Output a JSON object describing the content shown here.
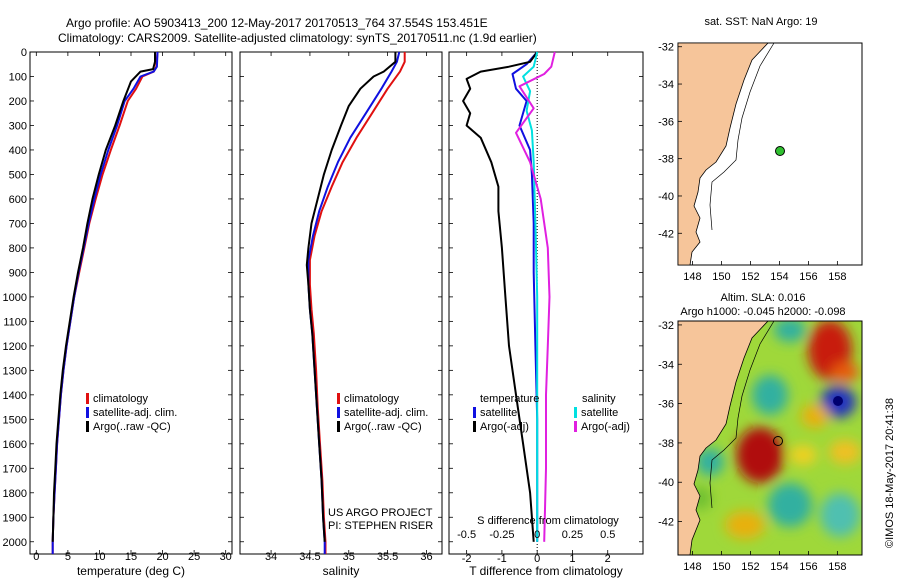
{
  "header": {
    "line1": "Argo profile: AO 5903413_200 12-May-2017 20170513_764 37.554S 153.451E",
    "line2": "Climatology: CARS2009. Satellite-adjusted climatology: synTS_20170511.nc (1.9d earlier)"
  },
  "colors": {
    "climatology": "#e01010",
    "satellite": "#1010e0",
    "argo": "#000000",
    "satellite_s": "#00e0e0",
    "argo_s": "#e020e0"
  },
  "chart_data": [
    {
      "id": "temperature",
      "type": "line",
      "xlabel": "temperature (deg C)",
      "ylabel": "",
      "xlim": [
        -1,
        31
      ],
      "ylim": [
        2050,
        0
      ],
      "xticks": [
        "0",
        "5",
        "10",
        "15",
        "20",
        "25",
        "30"
      ],
      "yticks": [
        "0",
        "100",
        "200",
        "300",
        "400",
        "500",
        "600",
        "700",
        "800",
        "900",
        "1000",
        "1100",
        "1200",
        "1300",
        "1400",
        "1500",
        "1600",
        "1700",
        "1800",
        "1900",
        "2000"
      ],
      "legend": [
        "climatology",
        "satellite-adj. clim.",
        "Argo(..raw -QC)"
      ],
      "series": [
        {
          "name": "climatology",
          "color": "#e01010",
          "points": [
            [
              19.2,
              0
            ],
            [
              19.0,
              60
            ],
            [
              18.6,
              80
            ],
            [
              16.8,
              100
            ],
            [
              15.8,
              150
            ],
            [
              14.5,
              200
            ],
            [
              13.2,
              300
            ],
            [
              11.8,
              400
            ],
            [
              10.5,
              500
            ],
            [
              9.4,
              600
            ],
            [
              8.4,
              700
            ],
            [
              7.6,
              800
            ],
            [
              6.8,
              900
            ],
            [
              6.0,
              1000
            ],
            [
              5.4,
              1100
            ],
            [
              4.8,
              1200
            ],
            [
              4.3,
              1300
            ],
            [
              3.9,
              1400
            ],
            [
              3.6,
              1500
            ],
            [
              3.3,
              1600
            ],
            [
              3.1,
              1700
            ],
            [
              2.9,
              1800
            ],
            [
              2.7,
              1900
            ],
            [
              2.6,
              2000
            ],
            [
              2.6,
              2050
            ]
          ]
        },
        {
          "name": "satellite-adj. clim.",
          "color": "#1010e0",
          "points": [
            [
              19.2,
              0
            ],
            [
              19.1,
              60
            ],
            [
              18.6,
              80
            ],
            [
              16.5,
              100
            ],
            [
              15.4,
              150
            ],
            [
              14.0,
              200
            ],
            [
              12.8,
              300
            ],
            [
              11.4,
              400
            ],
            [
              10.2,
              500
            ],
            [
              9.2,
              600
            ],
            [
              8.3,
              700
            ],
            [
              7.5,
              800
            ],
            [
              6.7,
              900
            ],
            [
              6.0,
              1000
            ],
            [
              5.4,
              1100
            ],
            [
              4.8,
              1200
            ],
            [
              4.3,
              1300
            ],
            [
              3.9,
              1400
            ],
            [
              3.6,
              1500
            ],
            [
              3.3,
              1600
            ],
            [
              3.1,
              1700
            ],
            [
              2.9,
              1800
            ],
            [
              2.7,
              1900
            ],
            [
              2.6,
              2000
            ],
            [
              2.6,
              2050
            ]
          ]
        },
        {
          "name": "Argo(..raw -QC)",
          "color": "#000000",
          "points": [
            [
              18.8,
              0
            ],
            [
              18.8,
              40
            ],
            [
              18.5,
              70
            ],
            [
              16.5,
              80
            ],
            [
              15.0,
              120
            ],
            [
              13.8,
              200
            ],
            [
              12.5,
              300
            ],
            [
              11.0,
              400
            ],
            [
              9.9,
              500
            ],
            [
              8.9,
              600
            ],
            [
              8.1,
              700
            ],
            [
              7.4,
              800
            ],
            [
              6.6,
              900
            ],
            [
              5.9,
              1000
            ],
            [
              5.3,
              1100
            ],
            [
              4.7,
              1200
            ],
            [
              4.2,
              1300
            ],
            [
              3.8,
              1400
            ],
            [
              3.5,
              1500
            ],
            [
              3.2,
              1600
            ],
            [
              3.0,
              1700
            ],
            [
              2.8,
              1800
            ],
            [
              2.7,
              1900
            ],
            [
              2.6,
              2000
            ]
          ]
        }
      ]
    },
    {
      "id": "salinity",
      "type": "line",
      "xlabel": "salinity",
      "ylabel": "",
      "xlim": [
        33.6,
        36.2
      ],
      "ylim": [
        2050,
        0
      ],
      "xticks": [
        "34",
        "34.5",
        "35",
        "35.5",
        "36"
      ],
      "legend": [
        "climatology",
        "satellite-adj. clim.",
        "Argo(..raw -QC)"
      ],
      "annotation": [
        "US ARGO PROJECT",
        "PI: STEPHEN RISER"
      ],
      "series": [
        {
          "name": "climatology",
          "color": "#e01010",
          "points": [
            [
              35.72,
              0
            ],
            [
              35.72,
              40
            ],
            [
              35.66,
              80
            ],
            [
              35.5,
              150
            ],
            [
              35.3,
              250
            ],
            [
              35.1,
              350
            ],
            [
              34.92,
              450
            ],
            [
              34.78,
              550
            ],
            [
              34.65,
              650
            ],
            [
              34.56,
              750
            ],
            [
              34.5,
              850
            ],
            [
              34.5,
              950
            ],
            [
              34.52,
              1050
            ],
            [
              34.55,
              1150
            ],
            [
              34.58,
              1300
            ],
            [
              34.6,
              1450
            ],
            [
              34.63,
              1600
            ],
            [
              34.66,
              1750
            ],
            [
              34.68,
              1900
            ],
            [
              34.7,
              2000
            ],
            [
              34.7,
              2050
            ]
          ]
        },
        {
          "name": "satellite-adj. clim.",
          "color": "#1010e0",
          "points": [
            [
              35.65,
              0
            ],
            [
              35.62,
              40
            ],
            [
              35.55,
              80
            ],
            [
              35.42,
              150
            ],
            [
              35.22,
              250
            ],
            [
              35.02,
              350
            ],
            [
              34.86,
              450
            ],
            [
              34.73,
              550
            ],
            [
              34.62,
              650
            ],
            [
              34.54,
              750
            ],
            [
              34.48,
              850
            ],
            [
              34.48,
              950
            ],
            [
              34.5,
              1050
            ],
            [
              34.53,
              1150
            ],
            [
              34.56,
              1300
            ],
            [
              34.59,
              1450
            ],
            [
              34.62,
              1600
            ],
            [
              34.65,
              1750
            ],
            [
              34.67,
              1900
            ],
            [
              34.69,
              2000
            ],
            [
              34.69,
              2050
            ]
          ]
        },
        {
          "name": "Argo(..raw -QC)",
          "color": "#000000",
          "points": [
            [
              35.6,
              0
            ],
            [
              35.6,
              40
            ],
            [
              35.45,
              80
            ],
            [
              35.32,
              100
            ],
            [
              35.15,
              150
            ],
            [
              35.0,
              220
            ],
            [
              34.9,
              300
            ],
            [
              34.78,
              400
            ],
            [
              34.68,
              500
            ],
            [
              34.6,
              600
            ],
            [
              34.52,
              700
            ],
            [
              34.48,
              800
            ],
            [
              34.46,
              870
            ],
            [
              34.48,
              950
            ],
            [
              34.5,
              1050
            ],
            [
              34.53,
              1150
            ],
            [
              34.56,
              1300
            ],
            [
              34.59,
              1450
            ],
            [
              34.62,
              1600
            ],
            [
              34.65,
              1750
            ],
            [
              34.67,
              1900
            ],
            [
              34.69,
              2000
            ]
          ]
        }
      ]
    },
    {
      "id": "differences",
      "type": "line",
      "xlabel": "T difference from climatology",
      "top_label": "S difference from climatology",
      "xlim": [
        -2.5,
        3
      ],
      "ylim": [
        2050,
        0
      ],
      "xticks": [
        "-2",
        "-1",
        "0",
        "1",
        "2"
      ],
      "sticks": [
        "-0.5",
        "-0.25",
        "0",
        "0.25",
        "0.5"
      ],
      "legend_temperature": [
        "temperature",
        "satellite",
        "Argo(-adj)"
      ],
      "legend_salinity": [
        "salinity",
        "satellite",
        "Argo(-adj)"
      ],
      "series": [
        {
          "name": "T satellite",
          "color": "#1010e0",
          "points": [
            [
              0,
              0
            ],
            [
              -0.3,
              50
            ],
            [
              -0.7,
              90
            ],
            [
              -0.6,
              150
            ],
            [
              -0.3,
              200
            ],
            [
              -0.5,
              300
            ],
            [
              -0.2,
              400
            ],
            [
              -0.15,
              500
            ],
            [
              -0.1,
              700
            ],
            [
              -0.1,
              900
            ],
            [
              -0.05,
              1200
            ],
            [
              0,
              1500
            ],
            [
              0,
              2000
            ]
          ]
        },
        {
          "name": "T Argo(-adj)",
          "color": "#000000",
          "points": [
            [
              0,
              0
            ],
            [
              -0.2,
              40
            ],
            [
              -0.8,
              60
            ],
            [
              -1.6,
              80
            ],
            [
              -2.0,
              110
            ],
            [
              -1.9,
              150
            ],
            [
              -2.1,
              200
            ],
            [
              -1.9,
              250
            ],
            [
              -2.0,
              300
            ],
            [
              -1.6,
              350
            ],
            [
              -1.3,
              450
            ],
            [
              -1.1,
              550
            ],
            [
              -1.1,
              650
            ],
            [
              -1.0,
              800
            ],
            [
              -0.9,
              1000
            ],
            [
              -0.8,
              1200
            ],
            [
              -0.6,
              1400
            ],
            [
              -0.4,
              1600
            ],
            [
              -0.2,
              1800
            ],
            [
              -0.1,
              2000
            ]
          ]
        },
        {
          "name": "S satellite",
          "color": "#00e0e0",
          "points": [
            [
              0,
              0
            ],
            [
              -0.1,
              60
            ],
            [
              -0.4,
              100
            ],
            [
              -0.2,
              160
            ],
            [
              -0.3,
              240
            ],
            [
              -0.15,
              320
            ],
            [
              -0.1,
              450
            ],
            [
              -0.05,
              700
            ],
            [
              0,
              1000
            ],
            [
              0,
              1500
            ],
            [
              0,
              2000
            ]
          ]
        },
        {
          "name": "S Argo(-adj)",
          "color": "#e020e0",
          "points": [
            [
              0.5,
              0
            ],
            [
              0.4,
              60
            ],
            [
              0.2,
              90
            ],
            [
              -0.5,
              140
            ],
            [
              -0.1,
              230
            ],
            [
              -0.6,
              330
            ],
            [
              -0.2,
              450
            ],
            [
              0.1,
              600
            ],
            [
              0.3,
              800
            ],
            [
              0.35,
              1000
            ],
            [
              0.3,
              1200
            ],
            [
              0.25,
              1400
            ],
            [
              0.25,
              1700
            ],
            [
              0.2,
              2000
            ]
          ]
        }
      ]
    }
  ],
  "maps": {
    "top": {
      "title": "sat. SST: NaN  Argo: 19",
      "lon_ticks": [
        "148",
        "150",
        "152",
        "154",
        "156",
        "158"
      ],
      "lat_ticks": [
        "-32",
        "-34",
        "-36",
        "-38",
        "-40",
        "-42"
      ]
    },
    "bottom": {
      "title_line1": "Altim. SLA: 0.016",
      "title_line2": "Argo h1000: -0.045 h2000: -0.098",
      "lon_ticks": [
        "148",
        "150",
        "152",
        "154",
        "156",
        "158"
      ],
      "lat_ticks": [
        "-32",
        "-34",
        "-36",
        "-38",
        "-40",
        "-42"
      ]
    }
  },
  "credit": "©IMOS 18-May-2017 20:41:38"
}
